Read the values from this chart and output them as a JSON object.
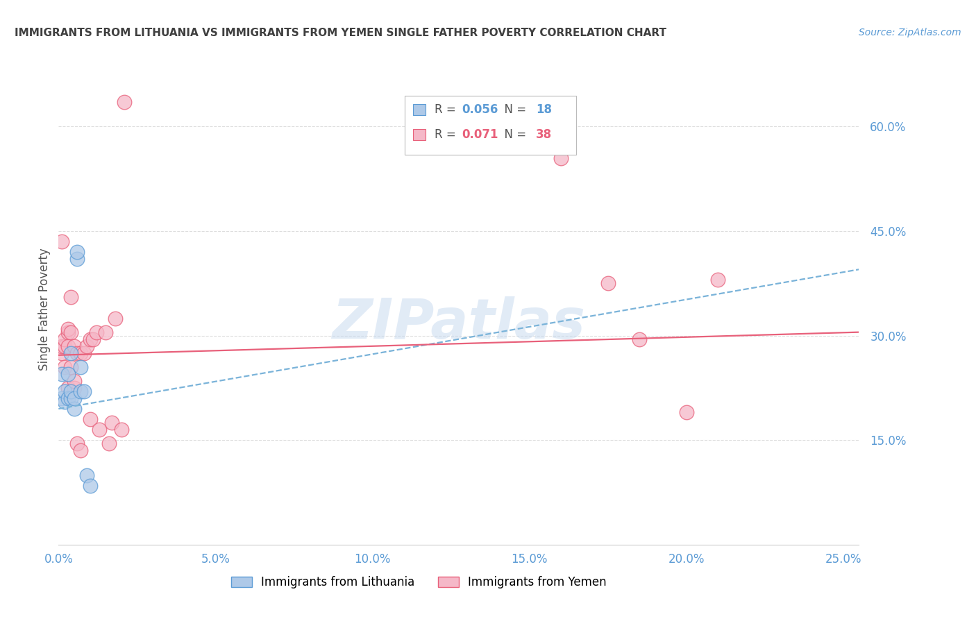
{
  "title": "IMMIGRANTS FROM LITHUANIA VS IMMIGRANTS FROM YEMEN SINGLE FATHER POVERTY CORRELATION CHART",
  "source": "Source: ZipAtlas.com",
  "ylabel": "Single Father Poverty",
  "legend_blue": {
    "R": "0.056",
    "N": "18",
    "label": "Immigrants from Lithuania"
  },
  "legend_pink": {
    "R": "0.071",
    "N": "38",
    "label": "Immigrants from Yemen"
  },
  "blue_fill_color": "#aec9e8",
  "blue_edge_color": "#5b9bd5",
  "pink_fill_color": "#f5b8c8",
  "pink_edge_color": "#e8607a",
  "blue_trend_color": "#7ab3d9",
  "pink_trend_color": "#e8607a",
  "blue_dots_x": [
    0.001,
    0.001,
    0.002,
    0.002,
    0.003,
    0.003,
    0.004,
    0.004,
    0.004,
    0.005,
    0.005,
    0.006,
    0.006,
    0.007,
    0.007,
    0.008,
    0.009,
    0.01
  ],
  "blue_dots_y": [
    0.21,
    0.245,
    0.205,
    0.22,
    0.245,
    0.21,
    0.275,
    0.21,
    0.22,
    0.195,
    0.21,
    0.41,
    0.42,
    0.22,
    0.255,
    0.22,
    0.1,
    0.085
  ],
  "pink_dots_x": [
    0.001,
    0.001,
    0.001,
    0.002,
    0.002,
    0.002,
    0.003,
    0.003,
    0.003,
    0.003,
    0.004,
    0.004,
    0.004,
    0.005,
    0.005,
    0.005,
    0.006,
    0.006,
    0.007,
    0.007,
    0.008,
    0.009,
    0.01,
    0.01,
    0.011,
    0.012,
    0.013,
    0.015,
    0.016,
    0.017,
    0.018,
    0.02,
    0.021,
    0.16,
    0.175,
    0.185,
    0.2,
    0.21
  ],
  "pink_dots_y": [
    0.275,
    0.285,
    0.435,
    0.285,
    0.295,
    0.255,
    0.225,
    0.305,
    0.31,
    0.285,
    0.355,
    0.305,
    0.255,
    0.225,
    0.235,
    0.285,
    0.275,
    0.145,
    0.135,
    0.275,
    0.275,
    0.285,
    0.295,
    0.18,
    0.295,
    0.305,
    0.165,
    0.305,
    0.145,
    0.175,
    0.325,
    0.165,
    0.635,
    0.555,
    0.375,
    0.295,
    0.19,
    0.38
  ],
  "xlim": [
    0.0,
    0.255
  ],
  "ylim": [
    0.0,
    0.675
  ],
  "xtick_positions": [
    0.0,
    0.05,
    0.1,
    0.15,
    0.2,
    0.25
  ],
  "xtick_labels": [
    "0.0%",
    "5.0%",
    "10.0%",
    "15.0%",
    "20.0%",
    "25.0%"
  ],
  "ytick_positions": [
    0.15,
    0.3,
    0.45,
    0.6
  ],
  "ytick_labels": [
    "15.0%",
    "30.0%",
    "45.0%",
    "60.0%"
  ],
  "blue_trend_x": [
    0.0,
    0.255
  ],
  "blue_trend_y": [
    0.195,
    0.395
  ],
  "pink_trend_x": [
    0.0,
    0.255
  ],
  "pink_trend_y": [
    0.272,
    0.305
  ],
  "watermark": "ZIPatlas",
  "bg_color": "#ffffff",
  "grid_color": "#dddddd",
  "axis_color": "#5b9bd5",
  "title_color": "#3f3f3f",
  "source_color": "#5b9bd5"
}
